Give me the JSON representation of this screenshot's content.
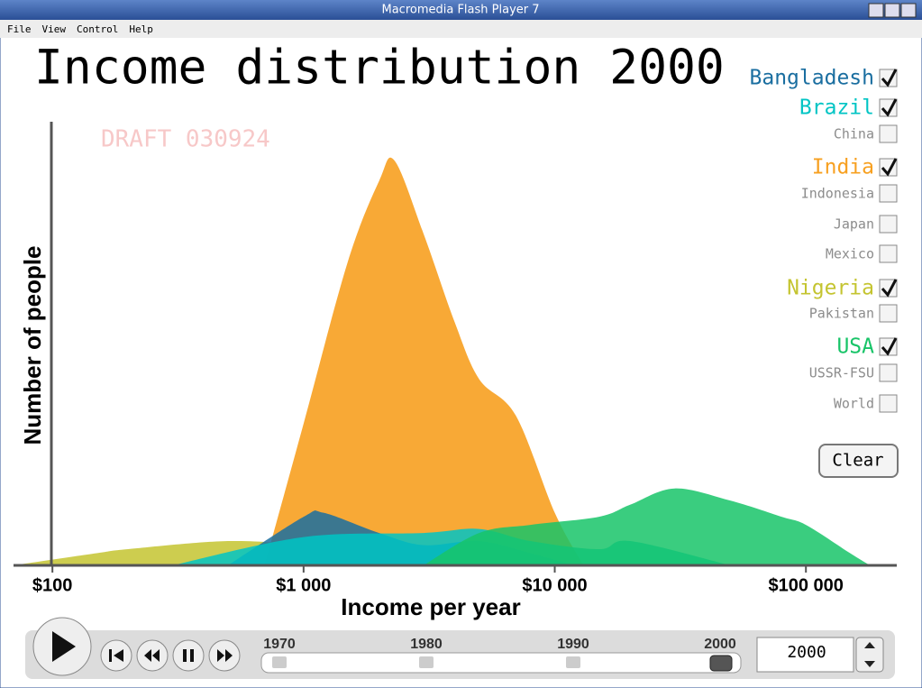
{
  "window": {
    "title": "Macromedia Flash Player 7",
    "menu": [
      "File",
      "View",
      "Control",
      "Help"
    ]
  },
  "chart_data": {
    "type": "area",
    "title": "Income distribution 2000",
    "watermark": "DRAFT 030924",
    "x_label": "Income per year",
    "y_label": "Number of people",
    "xscale": "log",
    "xlim": [
      70,
      230000
    ],
    "ylim": [
      0,
      100
    ],
    "xticks": [
      {
        "value": 100,
        "label": "$100"
      },
      {
        "value": 1000,
        "label": "$1 000"
      },
      {
        "value": 10000,
        "label": "$10 000"
      },
      {
        "value": 100000,
        "label": "$100 000"
      }
    ],
    "series": [
      {
        "name": "Bangladesh",
        "checked": true,
        "color": "#1a6ea0",
        "x": [
          500,
          1000,
          1200,
          2000,
          3000,
          5000,
          8000,
          12000
        ],
        "values": [
          0,
          12,
          13,
          8,
          5,
          6,
          3,
          0
        ]
      },
      {
        "name": "Brazil",
        "checked": true,
        "color": "#00c4c4",
        "x": [
          300,
          1000,
          3000,
          5000,
          8000,
          15000,
          20000,
          50000
        ],
        "values": [
          0,
          7,
          8,
          9,
          6,
          4,
          6,
          0
        ]
      },
      {
        "name": "China",
        "checked": false,
        "color": "#8c8c8c"
      },
      {
        "name": "India",
        "checked": true,
        "color": "#f7a020",
        "x": [
          700,
          1000,
          1500,
          2000,
          2300,
          3000,
          4000,
          5000,
          7000,
          10000,
          13000
        ],
        "values": [
          0,
          35,
          75,
          95,
          100,
          82,
          60,
          46,
          37,
          13,
          0
        ]
      },
      {
        "name": "Indonesia",
        "checked": false,
        "color": "#8c8c8c"
      },
      {
        "name": "Japan",
        "checked": false,
        "color": "#8c8c8c"
      },
      {
        "name": "Mexico",
        "checked": false,
        "color": "#8c8c8c"
      },
      {
        "name": "Nigeria",
        "checked": true,
        "color": "#c4c430",
        "x": [
          70,
          150,
          200,
          500,
          1000,
          2000,
          5000
        ],
        "values": [
          0,
          3,
          4,
          6,
          5,
          3,
          0
        ]
      },
      {
        "name": "Pakistan",
        "checked": false,
        "color": "#8c8c8c"
      },
      {
        "name": "USA",
        "checked": true,
        "color": "#18c468",
        "x": [
          3000,
          5000,
          8000,
          15000,
          20000,
          30000,
          50000,
          80000,
          100000,
          150000,
          180000
        ],
        "values": [
          0,
          8,
          10,
          12,
          15,
          19,
          16,
          12,
          10,
          3,
          0
        ]
      },
      {
        "name": "USSR-FSU",
        "checked": false,
        "color": "#8c8c8c"
      },
      {
        "name": "World",
        "checked": false,
        "color": "#8c8c8c"
      }
    ]
  },
  "controls": {
    "clear": "Clear",
    "timeline": [
      1970,
      1980,
      1990,
      2000
    ],
    "year": 2000
  }
}
